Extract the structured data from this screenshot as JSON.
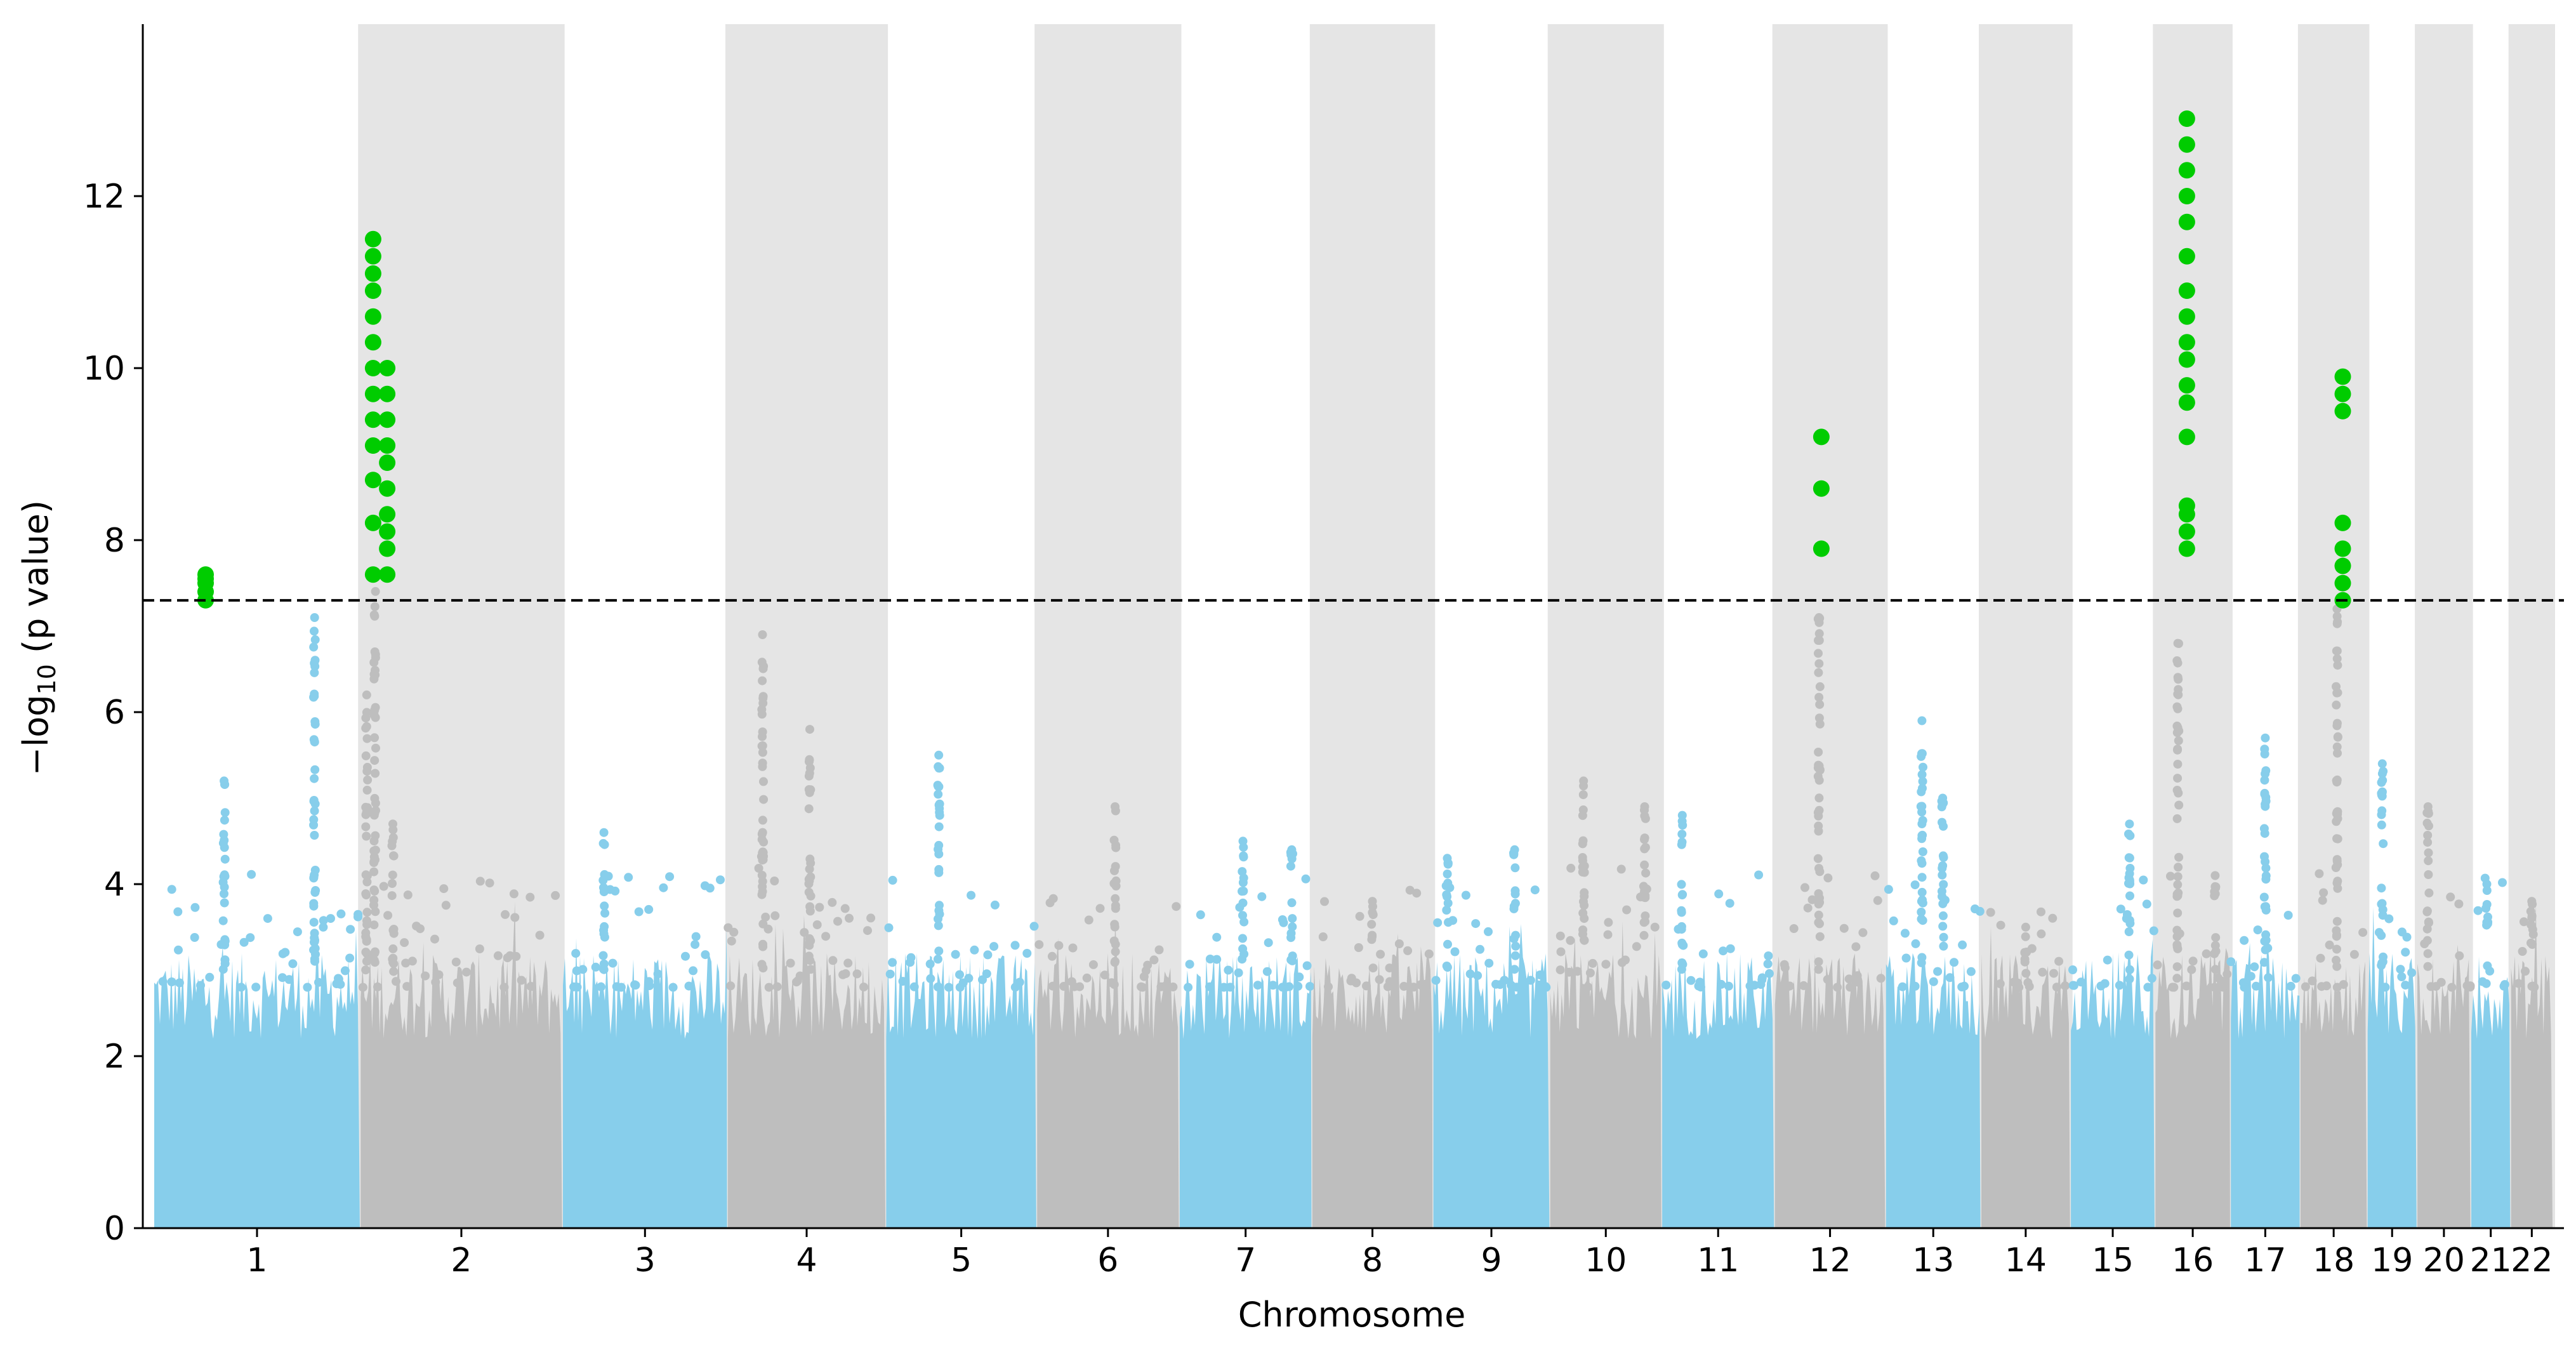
{
  "chart_data": {
    "type": "scatter",
    "subtype": "manhattan",
    "xlabel": "Chromosome",
    "ylabel_main": "−log",
    "ylabel_sub": "10",
    "ylabel_rest": " (p value)",
    "ylim": [
      0,
      14
    ],
    "yticks": [
      0,
      2,
      4,
      6,
      8,
      10,
      12
    ],
    "threshold": 7.3,
    "grid": false,
    "colors": {
      "odd": "#87ceeb",
      "even": "#bebebe",
      "significant": "#00cc00",
      "band": "#e5e5e5",
      "threshold_line": "#000000"
    },
    "chromosomes": [
      {
        "label": "1",
        "start": 0,
        "end": 248,
        "peaks": [
          {
            "pos": 0.34,
            "h": 5.2
          },
          {
            "pos": 0.78,
            "h": 7.1
          }
        ]
      },
      {
        "label": "2",
        "start": 249,
        "end": 492,
        "peaks": [
          {
            "pos": 0.03,
            "h": 6.2
          },
          {
            "pos": 0.07,
            "h": 7.6
          },
          {
            "pos": 0.16,
            "h": 4.7
          }
        ]
      },
      {
        "label": "3",
        "start": 493,
        "end": 691,
        "peaks": [
          {
            "pos": 0.25,
            "h": 4.6
          }
        ]
      },
      {
        "label": "4",
        "start": 692,
        "end": 882,
        "peaks": [
          {
            "pos": 0.22,
            "h": 6.9
          },
          {
            "pos": 0.52,
            "h": 5.8
          }
        ]
      },
      {
        "label": "5",
        "start": 883,
        "end": 1064,
        "peaks": [
          {
            "pos": 0.35,
            "h": 5.5
          }
        ]
      },
      {
        "label": "6",
        "start": 1065,
        "end": 1236,
        "peaks": [
          {
            "pos": 0.55,
            "h": 4.9
          }
        ]
      },
      {
        "label": "7",
        "start": 1237,
        "end": 1396,
        "peaks": [
          {
            "pos": 0.48,
            "h": 4.5
          },
          {
            "pos": 0.85,
            "h": 4.4
          }
        ]
      },
      {
        "label": "8",
        "start": 1397,
        "end": 1542,
        "peaks": [
          {
            "pos": 0.5,
            "h": 3.8
          }
        ]
      },
      {
        "label": "9",
        "start": 1543,
        "end": 1683,
        "peaks": [
          {
            "pos": 0.12,
            "h": 4.3
          },
          {
            "pos": 0.7,
            "h": 4.4
          }
        ]
      },
      {
        "label": "10",
        "start": 1684,
        "end": 1818,
        "peaks": [
          {
            "pos": 0.3,
            "h": 5.2
          },
          {
            "pos": 0.85,
            "h": 4.9
          }
        ]
      },
      {
        "label": "11",
        "start": 1819,
        "end": 1954,
        "peaks": [
          {
            "pos": 0.18,
            "h": 4.8
          }
        ]
      },
      {
        "label": "12",
        "start": 1955,
        "end": 2088,
        "peaks": [
          {
            "pos": 0.4,
            "h": 7.1
          }
        ]
      },
      {
        "label": "13",
        "start": 2089,
        "end": 2203,
        "peaks": [
          {
            "pos": 0.38,
            "h": 5.9
          },
          {
            "pos": 0.6,
            "h": 5.0
          }
        ]
      },
      {
        "label": "14",
        "start": 2204,
        "end": 2311,
        "peaks": [
          {
            "pos": 0.5,
            "h": 3.5
          }
        ]
      },
      {
        "label": "15",
        "start": 2312,
        "end": 2413,
        "peaks": [
          {
            "pos": 0.7,
            "h": 4.7
          }
        ]
      },
      {
        "label": "16",
        "start": 2414,
        "end": 2504,
        "peaks": [
          {
            "pos": 0.3,
            "h": 6.8
          },
          {
            "pos": 0.8,
            "h": 4.1
          }
        ]
      },
      {
        "label": "17",
        "start": 2505,
        "end": 2588,
        "peaks": [
          {
            "pos": 0.5,
            "h": 5.7
          }
        ]
      },
      {
        "label": "18",
        "start": 2589,
        "end": 2669,
        "peaks": [
          {
            "pos": 0.55,
            "h": 7.2
          }
        ]
      },
      {
        "label": "19",
        "start": 2670,
        "end": 2729,
        "peaks": [
          {
            "pos": 0.3,
            "h": 5.4
          }
        ]
      },
      {
        "label": "20",
        "start": 2730,
        "end": 2794,
        "peaks": [
          {
            "pos": 0.2,
            "h": 4.9
          }
        ]
      },
      {
        "label": "21",
        "start": 2795,
        "end": 2842,
        "peaks": [
          {
            "pos": 0.4,
            "h": 4.0
          }
        ]
      },
      {
        "label": "22",
        "start": 2843,
        "end": 2893,
        "peaks": [
          {
            "pos": 0.5,
            "h": 3.8
          }
        ]
      }
    ],
    "significant_hits": [
      {
        "chromosome": "1",
        "x": 62,
        "values": [
          7.3,
          7.4,
          7.5,
          7.55,
          7.6
        ]
      },
      {
        "chromosome": "2",
        "x": 264,
        "values": [
          7.6,
          8.2,
          8.7,
          9.1,
          9.4,
          9.7,
          10.0,
          10.3,
          10.6,
          10.9,
          11.1,
          11.3,
          11.5
        ]
      },
      {
        "chromosome": "2",
        "x": 281,
        "values": [
          7.6,
          7.9,
          8.1,
          8.3,
          8.6,
          8.9,
          9.1,
          9.4,
          9.7,
          10.0
        ]
      },
      {
        "chromosome": "12",
        "x": 2011,
        "values": [
          7.9,
          8.6,
          9.2
        ]
      },
      {
        "chromosome": "16",
        "x": 2452,
        "values": [
          7.9,
          8.1,
          8.3,
          8.4,
          9.2,
          9.6,
          9.8,
          10.1,
          10.3,
          10.6,
          10.9,
          11.3,
          11.7,
          12.0,
          12.3,
          12.6,
          12.9
        ]
      },
      {
        "chromosome": "18",
        "x": 2640,
        "values": [
          7.3,
          7.5,
          7.7,
          7.9,
          8.2,
          9.5,
          9.7,
          9.9
        ]
      }
    ]
  }
}
